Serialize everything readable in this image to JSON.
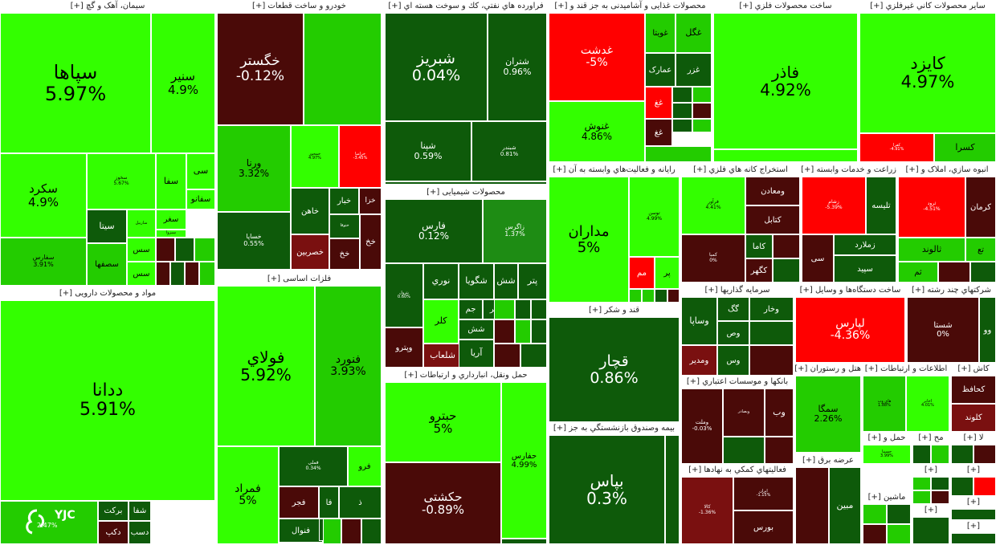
{
  "colors": {
    "bright": "#33ff00",
    "green": "#23cc00",
    "mid": "#1e8c14",
    "dark": "#0e5a0a",
    "maroon": "#4a0a08",
    "brown": "#7a1010",
    "red": "#ff0000"
  },
  "watermark": {
    "logo": "YJC",
    "value": "2.47%"
  },
  "sections": [
    {
      "title": "سیمان، آهک و گچ [+]",
      "tiles": [
        {
          "n": "سپاها",
          "p": "5.97%",
          "c": "bright",
          "f": 24
        },
        {
          "n": "سنیر",
          "p": "4.9%",
          "c": "bright",
          "f": 15
        },
        {
          "n": "سکرد",
          "p": "4.9%",
          "c": "bright",
          "f": 15
        },
        {
          "n": "سخوز",
          "p": "5.67%",
          "c": "bright",
          "f": 6
        },
        {
          "n": "سفا",
          "c": "bright",
          "f": 11
        },
        {
          "n": "سی",
          "c": "bright",
          "f": 11
        },
        {
          "n": "سفانو",
          "c": "bright",
          "f": 10
        },
        {
          "n": "سغر",
          "c": "bright",
          "f": 10
        },
        {
          "n": "سبزوا",
          "c": "bright",
          "f": 5
        },
        {
          "n": "سیتا",
          "c": "dark",
          "f": 11
        },
        {
          "n": "ساربیل",
          "c": "bright",
          "f": 5
        },
        {
          "n": "سصفها",
          "c": "green",
          "f": 10
        },
        {
          "n": "سفارس",
          "p": "3.91%",
          "c": "green",
          "f": 8
        },
        {
          "n": "سس",
          "c": "bright",
          "f": 10
        },
        {
          "n": "سس",
          "c": "bright",
          "f": 10
        },
        {
          "c": "maroon"
        },
        {
          "c": "dark"
        },
        {
          "c": "green"
        },
        {
          "c": "maroon"
        },
        {
          "c": "dark"
        },
        {
          "c": "maroon"
        },
        {
          "c": "green"
        },
        {
          "c": "dark"
        }
      ]
    },
    {
      "title": "مواد و محصولات دارویی [+]",
      "tiles": [
        {
          "n": "ددانا",
          "p": "5.91%",
          "c": "bright",
          "f": 22
        },
        {
          "c": "green"
        },
        {
          "n": "برکت",
          "c": "dark",
          "f": 10
        },
        {
          "n": "شفا",
          "c": "dark",
          "f": 10
        },
        {
          "n": "دکپ",
          "c": "maroon",
          "f": 10
        },
        {
          "n": "دسب",
          "c": "dark",
          "f": 10
        }
      ]
    },
    {
      "title": "خودرو و ساخت قطعات [+]",
      "tiles": [
        {
          "n": "خگستر",
          "p": "-0.12%",
          "c": "maroon",
          "f": 17
        },
        {
          "n": "خودرو",
          "p": "0.84%",
          "c": "dark",
          "f": 15
        },
        {
          "n": "ورنا",
          "p": "3.32%",
          "c": "green",
          "f": 12
        },
        {
          "n": "خمحور",
          "p": "4.97%",
          "c": "bright",
          "f": 5
        },
        {
          "n": "خزامیا",
          "p": "-3.45%",
          "c": "red",
          "f": 5
        },
        {
          "n": "خاهن",
          "c": "dark",
          "f": 10
        },
        {
          "n": "خبار",
          "c": "dark",
          "f": 10
        },
        {
          "n": "خزا",
          "c": "maroon",
          "f": 9
        },
        {
          "n": "خساپا",
          "p": "0.55%",
          "c": "dark",
          "f": 8
        },
        {
          "n": "ختوقا",
          "c": "dark",
          "f": 5
        },
        {
          "n": "خصربین",
          "c": "brown",
          "f": 10
        },
        {
          "n": "خخ",
          "c": "maroon",
          "f": 10
        },
        {
          "n": "خخ",
          "c": "maroon",
          "f": 10
        },
        {
          "c": "green"
        },
        {
          "c": "dark"
        },
        {
          "c": "maroon"
        },
        {
          "c": "dark"
        },
        {
          "c": "red"
        },
        {
          "c": "green"
        },
        {
          "c": "dark"
        },
        {
          "c": "maroon"
        }
      ]
    },
    {
      "title": "فلزات اساسی [+]",
      "tiles": [
        {
          "n": "فولاي",
          "p": "5.92%",
          "c": "bright",
          "f": 20
        },
        {
          "n": "فنورد",
          "p": "3.93%",
          "c": "green",
          "f": 14
        },
        {
          "n": "فمراد",
          "p": "5%",
          "c": "bright",
          "f": 14
        },
        {
          "n": "فملی",
          "p": "0.34%",
          "c": "dark",
          "f": 6
        },
        {
          "n": "فرو",
          "c": "bright",
          "f": 10
        },
        {
          "n": "فجر",
          "c": "maroon",
          "f": 10
        },
        {
          "n": "فا",
          "c": "dark",
          "f": 10
        },
        {
          "n": "ذ",
          "c": "dark",
          "f": 10
        },
        {
          "n": "فنوال",
          "c": "dark",
          "f": 10
        },
        {
          "n": "فا",
          "c": "dark",
          "f": 10
        },
        {
          "n": "فسبز",
          "c": "mid",
          "f": 10
        },
        {
          "c": "green"
        },
        {
          "c": "maroon"
        },
        {
          "c": "dark"
        },
        {
          "c": "green"
        },
        {
          "c": "dark"
        },
        {
          "c": "maroon"
        },
        {
          "c": "dark"
        }
      ]
    },
    {
      "title": "فراورده هاي نفتي، كك و سوخت هسته اي [+]",
      "tiles": [
        {
          "n": "شبریز",
          "p": "0.04%",
          "c": "dark",
          "f": 19
        },
        {
          "n": "شتران",
          "p": "0.96%",
          "c": "dark",
          "f": 11
        },
        {
          "n": "شپنا",
          "p": "0.59%",
          "c": "dark",
          "f": 11
        },
        {
          "n": "شبندر",
          "p": "0.81%",
          "c": "dark",
          "f": 7
        },
        {
          "c": "dark"
        },
        {
          "c": "dark"
        }
      ]
    },
    {
      "title": "محصولات شیمیایی [+]",
      "tiles": [
        {
          "n": "فارس",
          "p": "0.12%",
          "c": "dark",
          "f": 12
        },
        {
          "n": "زاگرس",
          "p": "1.37%",
          "c": "mid",
          "f": 8
        },
        {
          "n": "پترول",
          "p": "0.60%",
          "c": "dark",
          "f": 5
        },
        {
          "n": "نوري",
          "c": "dark",
          "f": 11
        },
        {
          "n": "شگویا",
          "c": "dark",
          "f": 11
        },
        {
          "n": "شش",
          "c": "dark",
          "f": 11
        },
        {
          "n": "پتر",
          "c": "dark",
          "f": 11
        },
        {
          "n": "جم",
          "c": "dark",
          "f": 10
        },
        {
          "n": "کر",
          "c": "dark",
          "f": 10
        },
        {
          "n": "کلر",
          "c": "bright",
          "f": 11
        },
        {
          "n": "شش",
          "c": "dark",
          "f": 10
        },
        {
          "n": "وپترو",
          "c": "maroon",
          "f": 10
        },
        {
          "n": "شلعاب",
          "c": "brown",
          "f": 11
        },
        {
          "n": "آریا",
          "c": "dark",
          "f": 11
        },
        {
          "c": "green"
        },
        {
          "c": "dark"
        },
        {
          "c": "dark"
        },
        {
          "c": "maroon"
        },
        {
          "c": "green"
        },
        {
          "c": "dark"
        },
        {
          "c": "maroon"
        },
        {
          "c": "dark"
        },
        {
          "c": "green"
        }
      ]
    },
    {
      "title": "حمل ونقل، انبارداري و ارتباطات [+]",
      "tiles": [
        {
          "n": "حبترو",
          "p": "5%",
          "c": "bright",
          "f": 15
        },
        {
          "n": "حفارس",
          "p": "4.99%",
          "c": "bright",
          "f": 10
        },
        {
          "n": "حکشتی",
          "p": "-0.89%",
          "c": "maroon",
          "f": 15
        },
        {
          "c": "dark"
        }
      ]
    },
    {
      "title": "محصولات غذایی و آشامیدنی به جز قند و [+]",
      "tiles": [
        {
          "n": "غدشت",
          "p": "-5%",
          "c": "red",
          "f": 14
        },
        {
          "n": "غویتا",
          "c": "green",
          "f": 10
        },
        {
          "n": "غگل",
          "c": "green",
          "f": 11
        },
        {
          "n": "عمارک",
          "c": "dark",
          "f": 10
        },
        {
          "n": "غزر",
          "c": "dark",
          "f": 10
        },
        {
          "n": "غنوش",
          "p": "4.86%",
          "c": "bright",
          "f": 12
        },
        {
          "n": "غغ",
          "c": "red",
          "f": 10
        },
        {
          "n": "غغ",
          "c": "maroon",
          "f": 10
        },
        {
          "c": "dark"
        },
        {
          "c": "green"
        },
        {
          "c": "dark"
        },
        {
          "c": "maroon"
        },
        {
          "c": "dark"
        },
        {
          "c": "green"
        },
        {
          "c": "green"
        }
      ]
    },
    {
      "title": "ساخت محصولات فلزي [+]",
      "tiles": [
        {
          "n": "فاذر",
          "p": "4.92%",
          "c": "bright",
          "f": 20
        },
        {
          "c": "bright"
        }
      ]
    },
    {
      "title": "سایر محصولات کاني غیرفلزي [+]",
      "tiles": [
        {
          "n": "کایزد",
          "p": "4.97%",
          "c": "bright",
          "f": 21
        },
        {
          "n": "کفرا",
          "p": "-4.91%",
          "c": "red",
          "f": 5
        },
        {
          "n": "کسرا",
          "c": "green",
          "f": 11
        }
      ]
    },
    {
      "title": "رایانه و فعالیت‌هاي وابسته به آن [+]",
      "tiles": [
        {
          "n": "مداران",
          "p": "5%",
          "c": "bright",
          "f": 18
        },
        {
          "n": "توسن",
          "p": "4.99%",
          "c": "bright",
          "f": 6
        },
        {
          "n": "مم",
          "c": "red",
          "f": 10
        },
        {
          "n": "پر",
          "c": "bright",
          "f": 10
        },
        {
          "c": "green"
        },
        {
          "c": "green"
        },
        {
          "c": "dark"
        },
        {
          "c": "maroon"
        }
      ]
    },
    {
      "title": "قند و شکر [+]",
      "tiles": [
        {
          "n": "قچار",
          "p": "0.86%",
          "c": "dark",
          "f": 19
        }
      ]
    },
    {
      "title": "بیمه وصندوق بازنشستگي به جز [+]",
      "tiles": [
        {
          "n": "بپاس",
          "p": "0.3%",
          "c": "dark",
          "f": 20
        },
        {
          "c": "dark"
        }
      ]
    },
    {
      "title": "استخراج کانه هاي فلزي [+]",
      "tiles": [
        {
          "n": "فرآور",
          "p": "4.41%",
          "c": "bright",
          "f": 6
        },
        {
          "n": "ومعادن",
          "c": "maroon",
          "f": 10
        },
        {
          "n": "کتابل",
          "c": "maroon",
          "f": 10
        },
        {
          "n": "کمبا",
          "p": "0%",
          "c": "maroon",
          "f": 6
        },
        {
          "n": "کاما",
          "c": "dark",
          "f": 10
        },
        {
          "n": "کگهر",
          "c": "maroon",
          "f": 10
        },
        {
          "c": "maroon"
        },
        {
          "c": "dark"
        }
      ]
    },
    {
      "title": "زراعت و خدمات وابسته [+]",
      "tiles": [
        {
          "n": "زشام",
          "p": "-5.39%",
          "c": "red",
          "f": 6
        },
        {
          "n": "تلیسه",
          "c": "dark",
          "f": 10
        },
        {
          "n": "زملارد",
          "c": "dark",
          "f": 10
        },
        {
          "n": "سی",
          "c": "maroon",
          "f": 10
        },
        {
          "n": "سپید",
          "c": "dark",
          "f": 10
        },
        {
          "c": "maroon"
        },
        {
          "c": "green"
        }
      ]
    },
    {
      "title": "انبوه سازي، املاک و [+]",
      "tiles": [
        {
          "n": "ثرود",
          "p": "-4.51%",
          "c": "red",
          "f": 6
        },
        {
          "n": "کرمان",
          "c": "maroon",
          "f": 10
        },
        {
          "n": "ثالوند",
          "c": "green",
          "f": 11
        },
        {
          "n": "تع",
          "c": "green",
          "f": 10
        },
        {
          "n": "ثم",
          "c": "green",
          "f": 10
        },
        {
          "c": "maroon"
        },
        {
          "c": "dark"
        }
      ]
    },
    {
      "title": "سرمایه گذاریها [+]",
      "tiles": [
        {
          "n": "وساپا",
          "c": "dark",
          "f": 11
        },
        {
          "n": "گگ",
          "c": "dark",
          "f": 10
        },
        {
          "n": "وخار",
          "c": "dark",
          "f": 10
        },
        {
          "n": "وص",
          "c": "dark",
          "f": 10
        },
        {
          "n": "ومدیر",
          "c": "brown",
          "f": 10
        },
        {
          "n": "وس",
          "c": "dark",
          "f": 10
        },
        {
          "c": "dark"
        },
        {
          "c": "maroon"
        }
      ]
    },
    {
      "title": "ساخت دستگاه‌ها و وسایل [+]",
      "tiles": [
        {
          "n": "لپارس",
          "p": "-4.36%",
          "c": "red",
          "f": 14
        }
      ]
    },
    {
      "title": "شرکتهاي چند رشته [+]",
      "tiles": [
        {
          "n": "شستا",
          "p": "0%",
          "c": "maroon",
          "f": 10
        },
        {
          "n": "وو",
          "c": "dark",
          "f": 10
        },
        {
          "c": "dark"
        }
      ]
    },
    {
      "title": "بانکها و موسسات اعتباري [+]",
      "tiles": [
        {
          "n": "وملت",
          "p": "-0.03%",
          "c": "maroon",
          "f": 7
        },
        {
          "n": "وبصادر",
          "c": "maroon",
          "f": 5
        },
        {
          "n": "وب",
          "c": "maroon",
          "f": 11
        },
        {
          "c": "dark"
        },
        {
          "c": "maroon"
        },
        {
          "c": "maroon"
        }
      ]
    },
    {
      "title": "هتل و رستوران [+]",
      "tiles": [
        {
          "n": "سمگا",
          "p": "2.26%",
          "c": "green",
          "f": 11
        }
      ]
    },
    {
      "title": "اطلاعات و ارتباطات [+]",
      "tiles": [
        {
          "n": "های وب",
          "p": "1.88%",
          "c": "green",
          "f": 5
        },
        {
          "n": "اخابر",
          "p": "4.01%",
          "c": "bright",
          "f": 5
        }
      ]
    },
    {
      "title": "کاش [+]",
      "tiles": [
        {
          "n": "کحافظ",
          "c": "maroon",
          "f": 10
        },
        {
          "n": "کلوند",
          "c": "brown",
          "f": 10
        }
      ]
    },
    {
      "title": "فعالیتهاي کمکي به نهادها [+]",
      "tiles": [
        {
          "n": "کالا",
          "p": "-1.36%",
          "c": "brown",
          "f": 6
        },
        {
          "n": "ایران",
          "p": "-1.15%",
          "c": "maroon",
          "f": 5
        },
        {
          "n": "بورس",
          "c": "maroon",
          "f": 10
        }
      ]
    },
    {
      "title": "عرضه برق [+]",
      "tiles": [
        {
          "n": "مبین",
          "c": "dark",
          "f": 11
        },
        {
          "c": "maroon"
        }
      ]
    },
    {
      "title": "حمل و [+]",
      "tiles": [
        {
          "n": "حسینا",
          "p": "3.99%",
          "c": "bright",
          "f": 5
        }
      ]
    },
    {
      "title": "مح [+]",
      "tiles": [
        {
          "c": "dark"
        },
        {
          "c": "green"
        }
      ]
    },
    {
      "title": "لا [+]",
      "tiles": [
        {
          "c": "dark"
        },
        {
          "c": "maroon"
        }
      ]
    },
    {
      "title": "ماشین [+]",
      "tiles": [
        {
          "c": "green"
        },
        {
          "c": "dark"
        },
        {
          "c": "maroon"
        },
        {
          "c": "green"
        }
      ]
    },
    {
      "title": "[+]",
      "tiles": [
        {
          "c": "green"
        },
        {
          "c": "dark"
        },
        {
          "c": "green"
        },
        {
          "c": "maroon"
        }
      ]
    },
    {
      "title": "[+]",
      "tiles": [
        {
          "c": "dark"
        },
        {
          "c": "red"
        }
      ]
    },
    {
      "title": "[+]",
      "tiles": [
        {
          "c": "dark"
        }
      ]
    },
    {
      "title": "[+]",
      "tiles": [
        {
          "c": "dark"
        }
      ]
    },
    {
      "title": "[+]",
      "tiles": [
        {
          "c": "dark"
        }
      ]
    }
  ]
}
